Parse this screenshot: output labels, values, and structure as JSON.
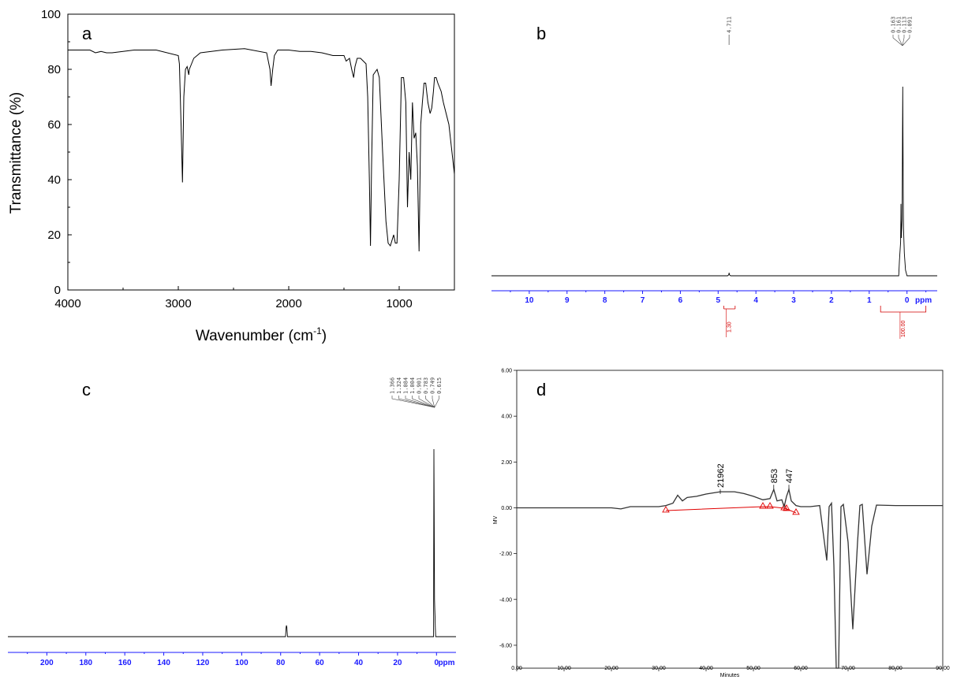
{
  "chart_data": [
    {
      "panel": "a",
      "type": "line",
      "xlabel": "Wavenumber (cm",
      "xlabel_sup": "-1",
      "xlabel_end": ")",
      "ylabel": "Transmittance (%)",
      "xlim": [
        4000,
        500
      ],
      "ylim": [
        0,
        100
      ],
      "x_ticks": [
        "4000",
        "3000",
        "2000",
        "1000"
      ],
      "y_ticks": [
        "0",
        "20",
        "40",
        "60",
        "80",
        "100"
      ],
      "series": [
        {
          "x": [
            4000,
            3800,
            3750,
            3700,
            3650,
            3600,
            3500,
            3400,
            3200,
            3000,
            2990,
            2975,
            2962,
            2950,
            2935,
            2920,
            2905,
            2900,
            2880,
            2860,
            2800,
            2600,
            2400,
            2200,
            2170,
            2160,
            2145,
            2130,
            2100,
            2000,
            1900,
            1800,
            1700,
            1600,
            1500,
            1480,
            1450,
            1430,
            1412,
            1400,
            1380,
            1350,
            1300,
            1285,
            1270,
            1260,
            1250,
            1235,
            1200,
            1180,
            1150,
            1120,
            1100,
            1080,
            1065,
            1050,
            1035,
            1020,
            1000,
            980,
            960,
            940,
            925,
            910,
            895,
            880,
            865,
            850,
            835,
            820,
            805,
            790,
            775,
            760,
            740,
            720,
            705,
            690,
            680,
            665,
            650,
            620,
            600,
            550,
            500
          ],
          "y": [
            87,
            87,
            86,
            86.5,
            86,
            86,
            86.5,
            87,
            87,
            85,
            82,
            60,
            39,
            70,
            80,
            81,
            78,
            80,
            82,
            84,
            86,
            87,
            87.5,
            86,
            80,
            74,
            80,
            85,
            87,
            87,
            86.5,
            86.5,
            86,
            85,
            85,
            83,
            84,
            80,
            77,
            81,
            84,
            84,
            82,
            70,
            40,
            16,
            45,
            78,
            80,
            77,
            50,
            25,
            17,
            16,
            18,
            20,
            17,
            17,
            40,
            77,
            77,
            68,
            30,
            50,
            40,
            68,
            55,
            57,
            45,
            14,
            60,
            68,
            75,
            75,
            68,
            64,
            66,
            72,
            77,
            77,
            75,
            72,
            68,
            60,
            42
          ]
        }
      ]
    },
    {
      "panel": "b",
      "type": "line",
      "xlabel": "ppm",
      "xlim": [
        11,
        -0.8
      ],
      "x_ticks": [
        "10",
        "9",
        "8",
        "7",
        "6",
        "5",
        "4",
        "3",
        "2",
        "1",
        "0"
      ],
      "peak_labels_top": [
        "4.711",
        "0.163",
        "0.161",
        "0.113",
        "0.091"
      ],
      "integrals": [
        "1.30",
        "100.00"
      ],
      "series": [
        {
          "x": [
            11,
            4.75,
            4.72,
            4.71,
            4.7,
            4.67,
            0.22,
            0.2,
            0.17,
            0.163,
            0.161,
            0.15,
            0.13,
            0.113,
            0.1,
            0.091,
            0.07,
            0.04,
            0.0,
            -0.8
          ],
          "y": [
            0,
            0,
            0.5,
            1.6,
            0.5,
            0,
            0,
            8,
            18,
            30,
            38,
            20,
            30,
            100,
            45,
            25,
            12,
            3,
            0,
            0
          ]
        }
      ]
    },
    {
      "panel": "c",
      "type": "line",
      "xlabel": "ppm",
      "xlim": [
        220,
        -10
      ],
      "x_ticks": [
        "200",
        "180",
        "160",
        "140",
        "120",
        "100",
        "80",
        "60",
        "40",
        "20",
        "0",
        "ppm"
      ],
      "peak_labels_top": [
        "1.366",
        "1.324",
        "1.084",
        "1.004",
        "0.901",
        "0.783",
        "0.749",
        "0.615"
      ],
      "series": [
        {
          "x": [
            220,
            77.5,
            77.2,
            77.0,
            76.8,
            76.5,
            1.5,
            1.35,
            1.1,
            1.0,
            0.9,
            0.75,
            0.6,
            0.4,
            -10
          ],
          "y": [
            0,
            0,
            5,
            6,
            5,
            0,
            0,
            100,
            40,
            20,
            15,
            10,
            5,
            0,
            0
          ]
        }
      ]
    },
    {
      "panel": "d",
      "type": "line",
      "xlabel": "Minutes",
      "ylabel": "MV",
      "xlim": [
        0,
        90
      ],
      "ylim": [
        -7,
        6
      ],
      "x_ticks": [
        "0.00",
        "10.00",
        "20.00",
        "30.00",
        "40.00",
        "50.00",
        "60.00",
        "70.00",
        "80.00",
        "90.00"
      ],
      "y_ticks": [
        "6.00",
        "4.00",
        "2.00",
        "0.00",
        "-2.00",
        "-4.00",
        "-6.00"
      ],
      "peak_labels": [
        {
          "text": "21962",
          "x": 43,
          "y": 0.6
        },
        {
          "text": "853",
          "x": 54.3,
          "y": 0.8
        },
        {
          "text": "447",
          "x": 57.5,
          "y": 0.8
        }
      ],
      "baseline": {
        "x": [
          31.5,
          52,
          53.5,
          56.5,
          57,
          59
        ],
        "y": [
          -0.12,
          0.05,
          0.05,
          -0.02,
          -0.05,
          -0.22
        ]
      },
      "series": [
        {
          "x": [
            0,
            10,
            20,
            22,
            24,
            28,
            30,
            31.5,
            33,
            34,
            35,
            36,
            38,
            40,
            43,
            46,
            48,
            50,
            52,
            53.5,
            54.3,
            55,
            56,
            56.5,
            57,
            57.5,
            58,
            59,
            60,
            62,
            64,
            65,
            65.5,
            66,
            66.5,
            67,
            67.5,
            68,
            68.5,
            69,
            70,
            71,
            72,
            72.5,
            73,
            74,
            75,
            76,
            80,
            85,
            90
          ],
          "y": [
            0,
            0,
            0,
            -0.05,
            0.05,
            0.05,
            0.05,
            0.1,
            0.2,
            0.55,
            0.3,
            0.45,
            0.5,
            0.6,
            0.7,
            0.7,
            0.62,
            0.5,
            0.35,
            0.4,
            0.8,
            0.3,
            0.35,
            0.05,
            0.5,
            0.8,
            0.3,
            0.1,
            0.05,
            0.05,
            0.1,
            -1.5,
            -2.3,
            0.05,
            0.2,
            -2.5,
            -7,
            -7,
            0.05,
            0.15,
            -1.5,
            -5.3,
            -1.5,
            0.1,
            0.15,
            -2.9,
            -0.8,
            0.12,
            0.1,
            0.1,
            0.1
          ]
        }
      ]
    }
  ]
}
